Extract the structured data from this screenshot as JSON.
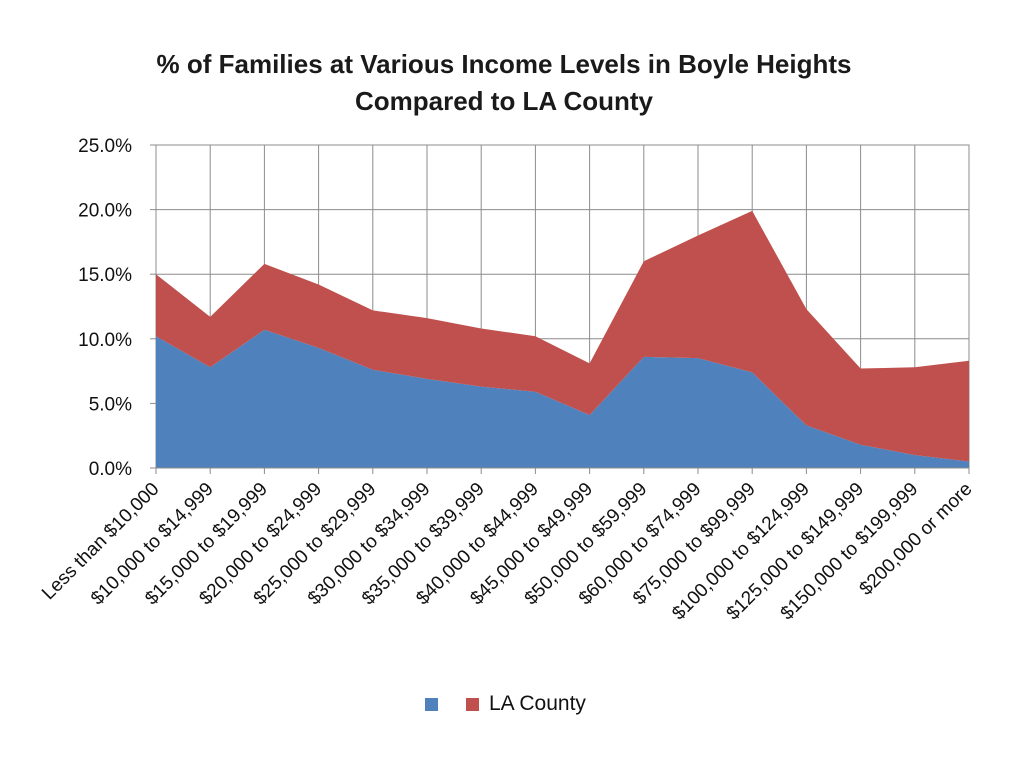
{
  "chart_data": {
    "type": "area",
    "stacked": true,
    "title_line1": "% of Families at Various Income Levels in Boyle Heights",
    "title_line2": "Compared to LA County",
    "categories": [
      "Less than $10,000",
      "$10,000 to $14,999",
      "$15,000 to $19,999",
      "$20,000 to $24,999",
      "$25,000 to $29,999",
      "$30,000 to $34,999",
      "$35,000 to $39,999",
      "$40,000 to $44,999",
      "$45,000 to $49,999",
      "$50,000 to $59,999",
      "$60,000 to $74,999",
      "$75,000 to $99,999",
      "$100,000 to $124,999",
      "$125,000 to $149,999",
      "$150,000 to $199,999",
      "$200,000 or more"
    ],
    "series": [
      {
        "name": "",
        "color": "#4f81bd",
        "values": [
          10.2,
          7.8,
          10.7,
          9.3,
          7.6,
          6.9,
          6.3,
          5.9,
          4.1,
          8.6,
          8.5,
          7.4,
          3.3,
          1.8,
          1.0,
          0.5
        ]
      },
      {
        "name": "LA County",
        "color": "#c0504d",
        "values": [
          4.8,
          3.9,
          5.1,
          4.9,
          4.6,
          4.7,
          4.5,
          4.3,
          4.0,
          7.4,
          9.5,
          12.5,
          9.0,
          5.9,
          6.8,
          7.8
        ]
      }
    ],
    "yticks": [
      "0.0%",
      "5.0%",
      "10.0%",
      "15.0%",
      "20.0%",
      "25.0%"
    ],
    "ylim": [
      0,
      25
    ],
    "grid": true,
    "legend_position": "bottom"
  }
}
